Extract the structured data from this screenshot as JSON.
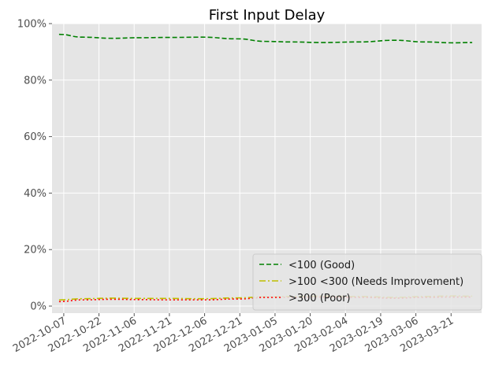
{
  "chart_data": {
    "type": "line",
    "title": "First Input Delay",
    "xlabel": "",
    "ylabel": "",
    "x_ticks": [
      "2022-10-07",
      "2022-10-22",
      "2022-11-06",
      "2022-11-21",
      "2022-12-06",
      "2022-12-21",
      "2023-01-05",
      "2023-01-20",
      "2023-02-04",
      "2023-02-19",
      "2023-03-06",
      "2023-03-21"
    ],
    "xlim": [
      "2022-10-02",
      "2023-04-03"
    ],
    "ylim": [
      -0.025,
      1.0
    ],
    "y_ticks": [
      0,
      0.2,
      0.4,
      0.6,
      0.8,
      1.0
    ],
    "y_tick_labels": [
      "0%",
      "20%",
      "40%",
      "60%",
      "80%",
      "100%"
    ],
    "grid": true,
    "legend_position": "lower-right",
    "series": [
      {
        "name": "<100 (Good)",
        "color": "#008000",
        "dash": "dashed",
        "points": [
          [
            "2022-10-05",
            0.962
          ],
          [
            "2022-10-15",
            0.952
          ],
          [
            "2022-10-28",
            0.948
          ],
          [
            "2022-11-08",
            0.95
          ],
          [
            "2022-11-20",
            0.951
          ],
          [
            "2022-12-05",
            0.952
          ],
          [
            "2022-12-20",
            0.946
          ],
          [
            "2023-01-01",
            0.937
          ],
          [
            "2023-01-12",
            0.935
          ],
          [
            "2023-01-25",
            0.933
          ],
          [
            "2023-02-10",
            0.935
          ],
          [
            "2023-02-25",
            0.941
          ],
          [
            "2023-03-10",
            0.935
          ],
          [
            "2023-03-22",
            0.932
          ],
          [
            "2023-03-30",
            0.933
          ]
        ]
      },
      {
        "name": ">100  <300 (Needs Improvement)",
        "color": "#bfbf00",
        "dash": "dashdot",
        "points": [
          [
            "2022-10-05",
            0.022
          ],
          [
            "2022-10-15",
            0.026
          ],
          [
            "2022-10-28",
            0.028
          ],
          [
            "2022-11-08",
            0.027
          ],
          [
            "2022-11-20",
            0.027
          ],
          [
            "2022-12-05",
            0.026
          ],
          [
            "2022-12-20",
            0.029
          ],
          [
            "2023-01-01",
            0.033
          ],
          [
            "2023-01-12",
            0.034
          ],
          [
            "2023-01-25",
            0.035
          ],
          [
            "2023-02-10",
            0.034
          ],
          [
            "2023-02-25",
            0.031
          ],
          [
            "2023-03-10",
            0.034
          ],
          [
            "2023-03-22",
            0.036
          ],
          [
            "2023-03-30",
            0.035
          ]
        ]
      },
      {
        "name": ">300 (Poor)",
        "color": "#ff0000",
        "dash": "dotted",
        "points": [
          [
            "2022-10-05",
            0.016
          ],
          [
            "2022-10-15",
            0.022
          ],
          [
            "2022-10-28",
            0.024
          ],
          [
            "2022-11-08",
            0.023
          ],
          [
            "2022-11-20",
            0.022
          ],
          [
            "2022-12-05",
            0.022
          ],
          [
            "2022-12-20",
            0.025
          ],
          [
            "2023-01-01",
            0.03
          ],
          [
            "2023-01-12",
            0.031
          ],
          [
            "2023-01-25",
            0.032
          ],
          [
            "2023-02-10",
            0.031
          ],
          [
            "2023-02-25",
            0.028
          ],
          [
            "2023-03-10",
            0.031
          ],
          [
            "2023-03-22",
            0.032
          ],
          [
            "2023-03-30",
            0.032
          ]
        ]
      }
    ]
  }
}
